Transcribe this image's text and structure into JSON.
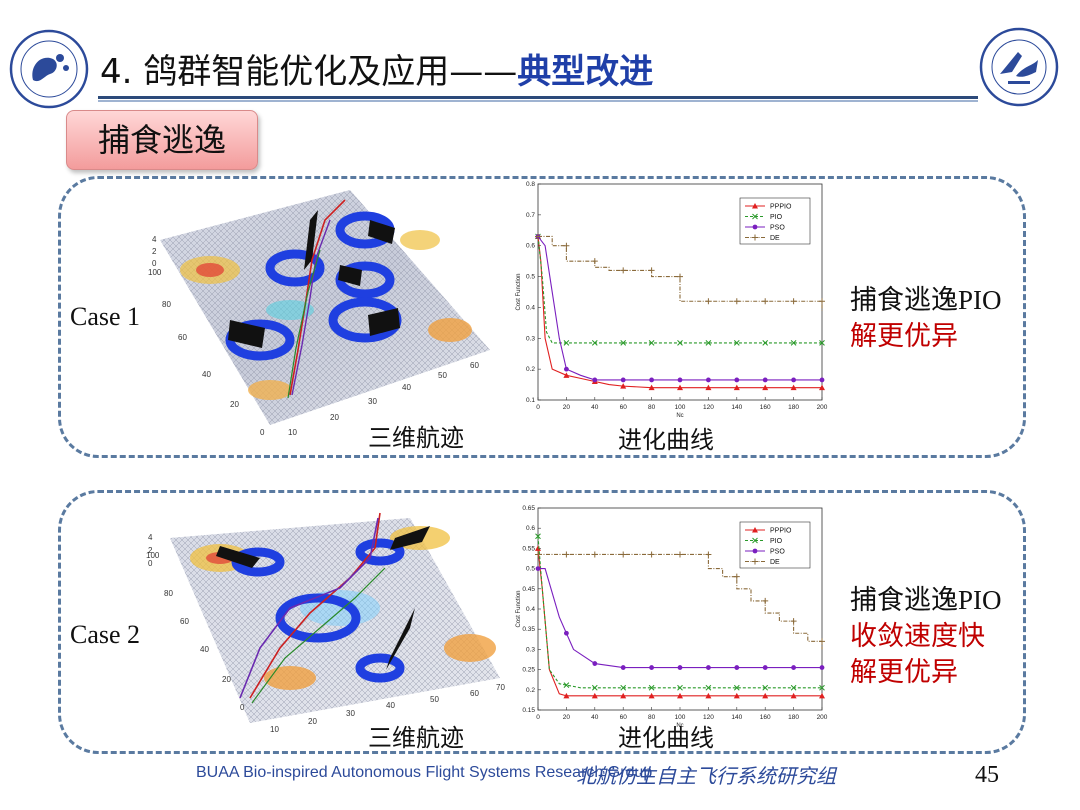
{
  "title": {
    "main": "4. 鸽群智能优化及应用——",
    "highlight": "典型改进"
  },
  "section_tag": "捕食逃逸",
  "cases": [
    {
      "label": "Case 1",
      "caption_3d": "三维航迹",
      "caption_curve": "进化曲线",
      "note_line1": "捕食逃逸PIO",
      "note_red": [
        "解更优异"
      ]
    },
    {
      "label": "Case 2",
      "caption_3d": "三维航迹",
      "caption_curve": "进化曲线",
      "note_line1": "捕食逃逸PIO",
      "note_red": [
        "收敛速度快",
        "解更优异"
      ]
    }
  ],
  "footer": {
    "english": "BUAA Bio-inspired Autonomous Flight Systems Research Group",
    "chinese": "北航仿生自主飞行系统研究组"
  },
  "page_number": "45",
  "chart_data": [
    {
      "type": "line",
      "title": "",
      "xlabel": "Nc",
      "ylabel": "Cost Function",
      "xlim": [
        0,
        200
      ],
      "ylim": [
        0.1,
        0.8
      ],
      "xticks": [
        0,
        20,
        40,
        60,
        80,
        100,
        120,
        140,
        160,
        180,
        200
      ],
      "yticks": [
        0.1,
        0.2,
        0.3,
        0.4,
        0.5,
        0.6,
        0.7,
        0.8
      ],
      "legend_position": "top-right",
      "series": [
        {
          "name": "PPPIO",
          "color": "#e02020",
          "marker": "triangle",
          "x": [
            0,
            2,
            5,
            10,
            20,
            30,
            40,
            50,
            60,
            80,
            100,
            200
          ],
          "y": [
            0.63,
            0.55,
            0.3,
            0.2,
            0.18,
            0.17,
            0.16,
            0.15,
            0.145,
            0.14,
            0.14,
            0.14
          ]
        },
        {
          "name": "PIO",
          "color": "#2a9a2a",
          "marker": "x",
          "x": [
            0,
            3,
            6,
            10,
            200
          ],
          "y": [
            0.63,
            0.5,
            0.32,
            0.285,
            0.285
          ]
        },
        {
          "name": "PSO",
          "color": "#7a1fbf",
          "marker": "circle",
          "x": [
            0,
            5,
            10,
            15,
            20,
            30,
            40,
            60,
            200
          ],
          "y": [
            0.63,
            0.6,
            0.45,
            0.3,
            0.2,
            0.18,
            0.165,
            0.165,
            0.165
          ]
        },
        {
          "name": "DE",
          "color": "#8a6a3a",
          "marker": "plus",
          "x": [
            0,
            10,
            20,
            40,
            50,
            80,
            100,
            140,
            190,
            200
          ],
          "y": [
            0.63,
            0.6,
            0.55,
            0.53,
            0.52,
            0.5,
            0.42,
            0.42,
            0.42,
            0.39
          ]
        }
      ]
    },
    {
      "type": "line",
      "title": "",
      "xlabel": "Nc",
      "ylabel": "Cost Function",
      "xlim": [
        0,
        200
      ],
      "ylim": [
        0.15,
        0.65
      ],
      "xticks": [
        0,
        20,
        40,
        60,
        80,
        100,
        120,
        140,
        160,
        180,
        200
      ],
      "yticks": [
        0.15,
        0.2,
        0.25,
        0.3,
        0.35,
        0.4,
        0.45,
        0.5,
        0.55,
        0.6,
        0.65
      ],
      "legend_position": "top-right",
      "series": [
        {
          "name": "PPPIO",
          "color": "#e02020",
          "marker": "triangle",
          "x": [
            0,
            3,
            8,
            15,
            20,
            200
          ],
          "y": [
            0.55,
            0.45,
            0.25,
            0.19,
            0.185,
            0.185
          ]
        },
        {
          "name": "PIO",
          "color": "#2a9a2a",
          "marker": "x",
          "x": [
            0,
            3,
            8,
            15,
            30,
            200
          ],
          "y": [
            0.58,
            0.45,
            0.25,
            0.215,
            0.205,
            0.205
          ]
        },
        {
          "name": "PSO",
          "color": "#7a1fbf",
          "marker": "circle",
          "x": [
            0,
            5,
            15,
            25,
            40,
            60,
            200
          ],
          "y": [
            0.5,
            0.5,
            0.38,
            0.3,
            0.265,
            0.255,
            0.255
          ]
        },
        {
          "name": "DE",
          "color": "#8a6a3a",
          "marker": "plus",
          "x": [
            0,
            100,
            120,
            130,
            140,
            150,
            160,
            170,
            180,
            190,
            200
          ],
          "y": [
            0.535,
            0.535,
            0.5,
            0.48,
            0.45,
            0.42,
            0.39,
            0.37,
            0.34,
            0.32,
            0.3
          ]
        }
      ]
    }
  ]
}
